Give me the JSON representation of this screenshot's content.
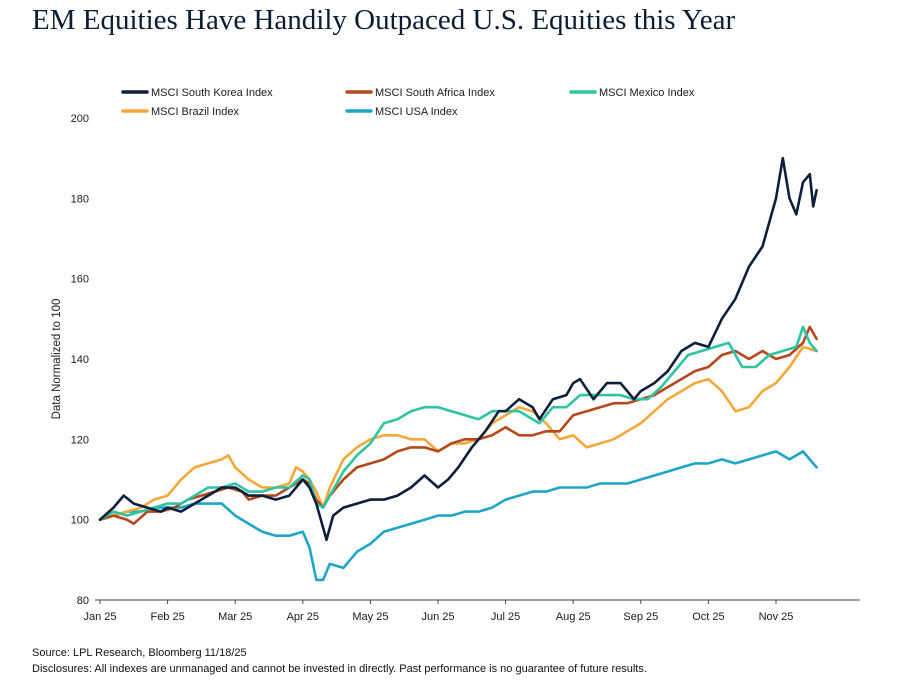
{
  "title": "EM Equities Have Handily Outpaced U.S. Equities this Year",
  "footer": {
    "source": "Source: LPL Research, Bloomberg 11/18/25",
    "disclosures": "Disclosures: All indexes are unmanaged and cannot be invested in directly. Past performance is no guarantee of future results."
  },
  "chart_data": {
    "type": "line",
    "title": "EM Equities Have Handily Outpaced U.S. Equities this Year",
    "xlabel": "",
    "ylabel": "Data Normalized to 100",
    "x_unit": "month index (0 = Jan 25, 1 = Feb 25, ...)",
    "x_ticks": [
      "Jan 25",
      "Feb 25",
      "Mar 25",
      "Apr 25",
      "May 25",
      "Jun 25",
      "Jul 25",
      "Aug 25",
      "Sep 25",
      "Oct 25",
      "Nov 25"
    ],
    "xlim": [
      0,
      10.6
    ],
    "ylim": [
      80,
      200
    ],
    "y_ticks": [
      80,
      100,
      120,
      140,
      160,
      180,
      200
    ],
    "grid": false,
    "legend_position": "top",
    "series": [
      {
        "name": "MSCI South Korea Index",
        "color": "#0d1f3c",
        "points": [
          [
            0,
            100
          ],
          [
            0.2,
            103
          ],
          [
            0.35,
            106
          ],
          [
            0.5,
            104
          ],
          [
            0.7,
            103
          ],
          [
            0.9,
            102
          ],
          [
            1.0,
            103
          ],
          [
            1.2,
            102
          ],
          [
            1.4,
            104
          ],
          [
            1.6,
            106
          ],
          [
            1.8,
            108
          ],
          [
            2.0,
            108
          ],
          [
            2.2,
            106
          ],
          [
            2.4,
            106
          ],
          [
            2.6,
            105
          ],
          [
            2.8,
            106
          ],
          [
            3.0,
            110
          ],
          [
            3.1,
            108
          ],
          [
            3.2,
            104
          ],
          [
            3.3,
            98
          ],
          [
            3.35,
            95
          ],
          [
            3.45,
            101
          ],
          [
            3.6,
            103
          ],
          [
            3.8,
            104
          ],
          [
            4.0,
            105
          ],
          [
            4.2,
            105
          ],
          [
            4.4,
            106
          ],
          [
            4.6,
            108
          ],
          [
            4.8,
            111
          ],
          [
            5.0,
            108
          ],
          [
            5.15,
            110
          ],
          [
            5.3,
            113
          ],
          [
            5.5,
            118
          ],
          [
            5.7,
            122
          ],
          [
            5.9,
            127
          ],
          [
            6.0,
            127
          ],
          [
            6.2,
            130
          ],
          [
            6.4,
            128
          ],
          [
            6.5,
            125
          ],
          [
            6.7,
            130
          ],
          [
            6.9,
            131
          ],
          [
            7.0,
            134
          ],
          [
            7.1,
            135
          ],
          [
            7.3,
            130
          ],
          [
            7.5,
            134
          ],
          [
            7.7,
            134
          ],
          [
            7.9,
            130
          ],
          [
            8.0,
            132
          ],
          [
            8.2,
            134
          ],
          [
            8.4,
            137
          ],
          [
            8.6,
            142
          ],
          [
            8.8,
            144
          ],
          [
            9.0,
            143
          ],
          [
            9.2,
            150
          ],
          [
            9.4,
            155
          ],
          [
            9.6,
            163
          ],
          [
            9.8,
            168
          ],
          [
            10.0,
            180
          ],
          [
            10.1,
            190
          ],
          [
            10.2,
            180
          ],
          [
            10.3,
            176
          ],
          [
            10.4,
            184
          ],
          [
            10.5,
            186
          ],
          [
            10.55,
            178
          ],
          [
            10.6,
            182
          ]
        ]
      },
      {
        "name": "MSCI South Africa Index",
        "color": "#b5481c",
        "points": [
          [
            0,
            100
          ],
          [
            0.2,
            101
          ],
          [
            0.4,
            100
          ],
          [
            0.5,
            99
          ],
          [
            0.7,
            102
          ],
          [
            0.9,
            102
          ],
          [
            1.1,
            103
          ],
          [
            1.3,
            105
          ],
          [
            1.5,
            106
          ],
          [
            1.7,
            107
          ],
          [
            1.9,
            108
          ],
          [
            2.1,
            107
          ],
          [
            2.2,
            105
          ],
          [
            2.4,
            106
          ],
          [
            2.6,
            106
          ],
          [
            2.8,
            108
          ],
          [
            3.0,
            110
          ],
          [
            3.1,
            109
          ],
          [
            3.2,
            105
          ],
          [
            3.3,
            103
          ],
          [
            3.4,
            106
          ],
          [
            3.6,
            110
          ],
          [
            3.8,
            113
          ],
          [
            4.0,
            114
          ],
          [
            4.2,
            115
          ],
          [
            4.4,
            117
          ],
          [
            4.6,
            118
          ],
          [
            4.8,
            118
          ],
          [
            5.0,
            117
          ],
          [
            5.2,
            119
          ],
          [
            5.4,
            120
          ],
          [
            5.6,
            120
          ],
          [
            5.8,
            121
          ],
          [
            6.0,
            123
          ],
          [
            6.2,
            121
          ],
          [
            6.4,
            121
          ],
          [
            6.6,
            122
          ],
          [
            6.8,
            122
          ],
          [
            7.0,
            126
          ],
          [
            7.2,
            127
          ],
          [
            7.4,
            128
          ],
          [
            7.6,
            129
          ],
          [
            7.8,
            129
          ],
          [
            8.0,
            130
          ],
          [
            8.2,
            131
          ],
          [
            8.4,
            133
          ],
          [
            8.6,
            135
          ],
          [
            8.8,
            137
          ],
          [
            9.0,
            138
          ],
          [
            9.2,
            141
          ],
          [
            9.4,
            142
          ],
          [
            9.6,
            140
          ],
          [
            9.8,
            142
          ],
          [
            10.0,
            140
          ],
          [
            10.2,
            141
          ],
          [
            10.4,
            144
          ],
          [
            10.5,
            148
          ],
          [
            10.6,
            145
          ]
        ]
      },
      {
        "name": "MSCI Mexico Index",
        "color": "#2ec4a0",
        "points": [
          [
            0,
            100
          ],
          [
            0.2,
            102
          ],
          [
            0.4,
            101
          ],
          [
            0.6,
            102
          ],
          [
            0.8,
            103
          ],
          [
            1.0,
            104
          ],
          [
            1.2,
            104
          ],
          [
            1.4,
            106
          ],
          [
            1.6,
            108
          ],
          [
            1.8,
            108
          ],
          [
            2.0,
            109
          ],
          [
            2.2,
            107
          ],
          [
            2.4,
            107
          ],
          [
            2.6,
            108
          ],
          [
            2.8,
            108
          ],
          [
            3.0,
            111
          ],
          [
            3.1,
            110
          ],
          [
            3.2,
            104
          ],
          [
            3.3,
            103
          ],
          [
            3.4,
            106
          ],
          [
            3.6,
            112
          ],
          [
            3.8,
            116
          ],
          [
            4.0,
            119
          ],
          [
            4.2,
            124
          ],
          [
            4.4,
            125
          ],
          [
            4.6,
            127
          ],
          [
            4.8,
            128
          ],
          [
            5.0,
            128
          ],
          [
            5.2,
            127
          ],
          [
            5.4,
            126
          ],
          [
            5.6,
            125
          ],
          [
            5.8,
            127
          ],
          [
            6.0,
            127
          ],
          [
            6.2,
            127
          ],
          [
            6.4,
            125
          ],
          [
            6.5,
            124
          ],
          [
            6.7,
            128
          ],
          [
            6.9,
            128
          ],
          [
            7.1,
            131
          ],
          [
            7.3,
            131
          ],
          [
            7.5,
            131
          ],
          [
            7.7,
            131
          ],
          [
            7.9,
            130
          ],
          [
            8.1,
            130
          ],
          [
            8.3,
            133
          ],
          [
            8.5,
            137
          ],
          [
            8.7,
            141
          ],
          [
            8.9,
            142
          ],
          [
            9.1,
            143
          ],
          [
            9.3,
            144
          ],
          [
            9.5,
            138
          ],
          [
            9.7,
            138
          ],
          [
            9.9,
            141
          ],
          [
            10.1,
            142
          ],
          [
            10.3,
            143
          ],
          [
            10.4,
            148
          ],
          [
            10.5,
            144
          ],
          [
            10.6,
            142
          ]
        ]
      },
      {
        "name": "MSCI Brazil Index",
        "color": "#f5a83a",
        "points": [
          [
            0,
            100
          ],
          [
            0.2,
            101
          ],
          [
            0.4,
            102
          ],
          [
            0.6,
            103
          ],
          [
            0.8,
            105
          ],
          [
            1.0,
            106
          ],
          [
            1.2,
            110
          ],
          [
            1.4,
            113
          ],
          [
            1.6,
            114
          ],
          [
            1.8,
            115
          ],
          [
            1.9,
            116
          ],
          [
            2.0,
            113
          ],
          [
            2.2,
            110
          ],
          [
            2.4,
            108
          ],
          [
            2.6,
            108
          ],
          [
            2.8,
            109
          ],
          [
            2.9,
            113
          ],
          [
            3.0,
            112
          ],
          [
            3.1,
            110
          ],
          [
            3.2,
            107
          ],
          [
            3.3,
            103
          ],
          [
            3.4,
            108
          ],
          [
            3.6,
            115
          ],
          [
            3.8,
            118
          ],
          [
            4.0,
            120
          ],
          [
            4.2,
            121
          ],
          [
            4.4,
            121
          ],
          [
            4.6,
            120
          ],
          [
            4.8,
            120
          ],
          [
            5.0,
            117
          ],
          [
            5.2,
            119
          ],
          [
            5.4,
            119
          ],
          [
            5.6,
            120
          ],
          [
            5.8,
            124
          ],
          [
            6.0,
            126
          ],
          [
            6.2,
            128
          ],
          [
            6.4,
            127
          ],
          [
            6.6,
            124
          ],
          [
            6.8,
            120
          ],
          [
            7.0,
            121
          ],
          [
            7.2,
            118
          ],
          [
            7.4,
            119
          ],
          [
            7.6,
            120
          ],
          [
            7.8,
            122
          ],
          [
            8.0,
            124
          ],
          [
            8.2,
            127
          ],
          [
            8.4,
            130
          ],
          [
            8.6,
            132
          ],
          [
            8.8,
            134
          ],
          [
            9.0,
            135
          ],
          [
            9.2,
            132
          ],
          [
            9.4,
            127
          ],
          [
            9.6,
            128
          ],
          [
            9.8,
            132
          ],
          [
            10.0,
            134
          ],
          [
            10.2,
            138
          ],
          [
            10.4,
            143
          ],
          [
            10.6,
            142
          ]
        ]
      },
      {
        "name": "MSCI USA Index",
        "color": "#1ea6c9",
        "points": [
          [
            0,
            100
          ],
          [
            0.2,
            101
          ],
          [
            0.4,
            102
          ],
          [
            0.6,
            102
          ],
          [
            0.8,
            103
          ],
          [
            1.0,
            103
          ],
          [
            1.2,
            103
          ],
          [
            1.4,
            104
          ],
          [
            1.6,
            104
          ],
          [
            1.8,
            104
          ],
          [
            2.0,
            101
          ],
          [
            2.2,
            99
          ],
          [
            2.4,
            97
          ],
          [
            2.6,
            96
          ],
          [
            2.8,
            96
          ],
          [
            3.0,
            97
          ],
          [
            3.1,
            93
          ],
          [
            3.2,
            85
          ],
          [
            3.3,
            85
          ],
          [
            3.4,
            89
          ],
          [
            3.6,
            88
          ],
          [
            3.8,
            92
          ],
          [
            4.0,
            94
          ],
          [
            4.2,
            97
          ],
          [
            4.4,
            98
          ],
          [
            4.6,
            99
          ],
          [
            4.8,
            100
          ],
          [
            5.0,
            101
          ],
          [
            5.2,
            101
          ],
          [
            5.4,
            102
          ],
          [
            5.6,
            102
          ],
          [
            5.8,
            103
          ],
          [
            6.0,
            105
          ],
          [
            6.2,
            106
          ],
          [
            6.4,
            107
          ],
          [
            6.6,
            107
          ],
          [
            6.8,
            108
          ],
          [
            7.0,
            108
          ],
          [
            7.2,
            108
          ],
          [
            7.4,
            109
          ],
          [
            7.6,
            109
          ],
          [
            7.8,
            109
          ],
          [
            8.0,
            110
          ],
          [
            8.2,
            111
          ],
          [
            8.4,
            112
          ],
          [
            8.6,
            113
          ],
          [
            8.8,
            114
          ],
          [
            9.0,
            114
          ],
          [
            9.2,
            115
          ],
          [
            9.4,
            114
          ],
          [
            9.6,
            115
          ],
          [
            9.8,
            116
          ],
          [
            10.0,
            117
          ],
          [
            10.2,
            115
          ],
          [
            10.3,
            116
          ],
          [
            10.4,
            117
          ],
          [
            10.5,
            115
          ],
          [
            10.6,
            113
          ]
        ]
      }
    ]
  }
}
